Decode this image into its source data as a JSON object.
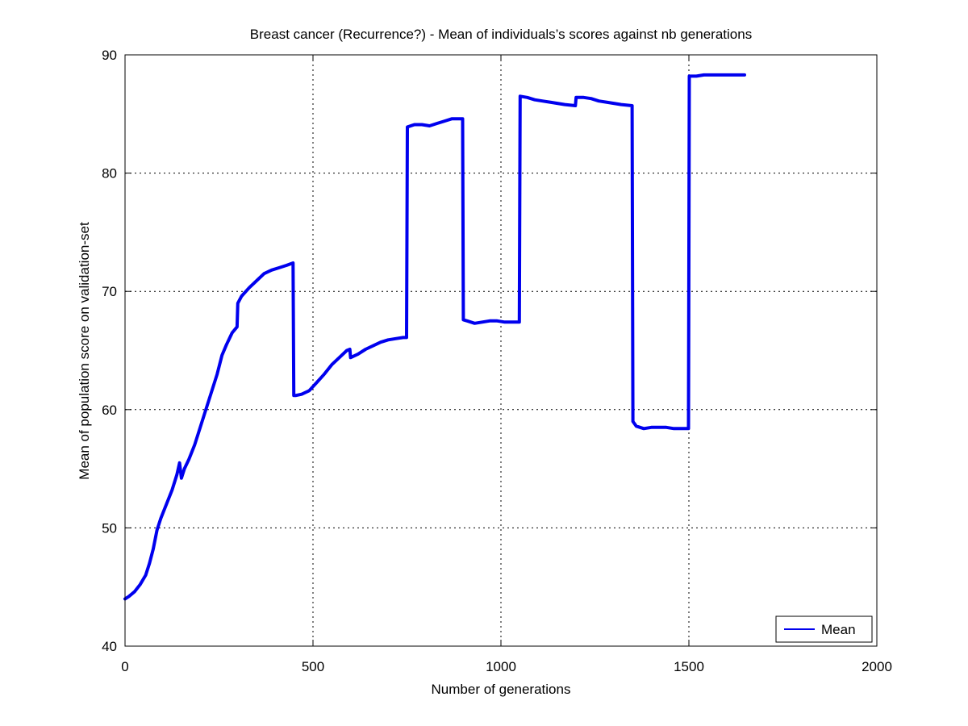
{
  "chart_data": {
    "type": "line",
    "title": "Breast cancer (Recurrence?) - Mean of individuals’s scores against nb generations",
    "xlabel": "Number of generations",
    "ylabel": "Mean of population score on validation-set",
    "xlim": [
      0,
      2000
    ],
    "ylim": [
      40,
      90
    ],
    "xticks": [
      0,
      500,
      1000,
      1500,
      2000
    ],
    "yticks": [
      40,
      50,
      60,
      70,
      80,
      90
    ],
    "xtick_labels": [
      "0",
      "500",
      "1000",
      "1500",
      "2000"
    ],
    "ytick_labels": [
      "40",
      "50",
      "60",
      "70",
      "80",
      "90"
    ],
    "grid": true,
    "legend_position": "bottom-right",
    "series": [
      {
        "name": "Mean",
        "color": "#0000ee",
        "x": [
          0,
          10,
          25,
          40,
          55,
          65,
          75,
          85,
          95,
          110,
          125,
          138,
          145,
          150,
          158,
          170,
          185,
          200,
          215,
          230,
          245,
          258,
          270,
          285,
          298,
          300,
          310,
          330,
          350,
          370,
          390,
          410,
          430,
          447,
          449,
          455,
          470,
          490,
          510,
          530,
          550,
          570,
          590,
          598,
          600,
          620,
          640,
          660,
          680,
          700,
          720,
          740,
          749,
          751,
          770,
          790,
          810,
          830,
          850,
          870,
          898,
          900,
          910,
          930,
          950,
          970,
          990,
          1010,
          1030,
          1049,
          1051,
          1070,
          1090,
          1110,
          1130,
          1150,
          1170,
          1198,
          1200,
          1220,
          1240,
          1260,
          1280,
          1300,
          1320,
          1349,
          1351,
          1360,
          1380,
          1400,
          1420,
          1440,
          1460,
          1480,
          1499,
          1501,
          1520,
          1540,
          1560,
          1580,
          1600,
          1620,
          1648
        ],
        "y": [
          44.0,
          44.2,
          44.6,
          45.2,
          46.0,
          47.0,
          48.2,
          49.8,
          50.8,
          52.0,
          53.2,
          54.5,
          55.5,
          54.2,
          55.0,
          55.8,
          57.0,
          58.5,
          60.0,
          61.5,
          63.0,
          64.6,
          65.5,
          66.5,
          67.0,
          69.0,
          69.6,
          70.3,
          70.9,
          71.5,
          71.8,
          72.0,
          72.2,
          72.4,
          61.2,
          61.2,
          61.3,
          61.6,
          62.3,
          63.0,
          63.8,
          64.4,
          65.0,
          65.1,
          64.4,
          64.7,
          65.1,
          65.4,
          65.7,
          65.9,
          66.0,
          66.1,
          66.1,
          83.9,
          84.1,
          84.1,
          84.0,
          84.2,
          84.4,
          84.6,
          84.6,
          67.6,
          67.5,
          67.3,
          67.4,
          67.5,
          67.5,
          67.4,
          67.4,
          67.4,
          86.5,
          86.4,
          86.2,
          86.1,
          86.0,
          85.9,
          85.8,
          85.7,
          86.4,
          86.4,
          86.3,
          86.1,
          86.0,
          85.9,
          85.8,
          85.7,
          59.0,
          58.6,
          58.4,
          58.5,
          58.5,
          58.5,
          58.4,
          58.4,
          58.4,
          88.2,
          88.2,
          88.3,
          88.3,
          88.3,
          88.3,
          88.3,
          88.3
        ]
      }
    ]
  }
}
